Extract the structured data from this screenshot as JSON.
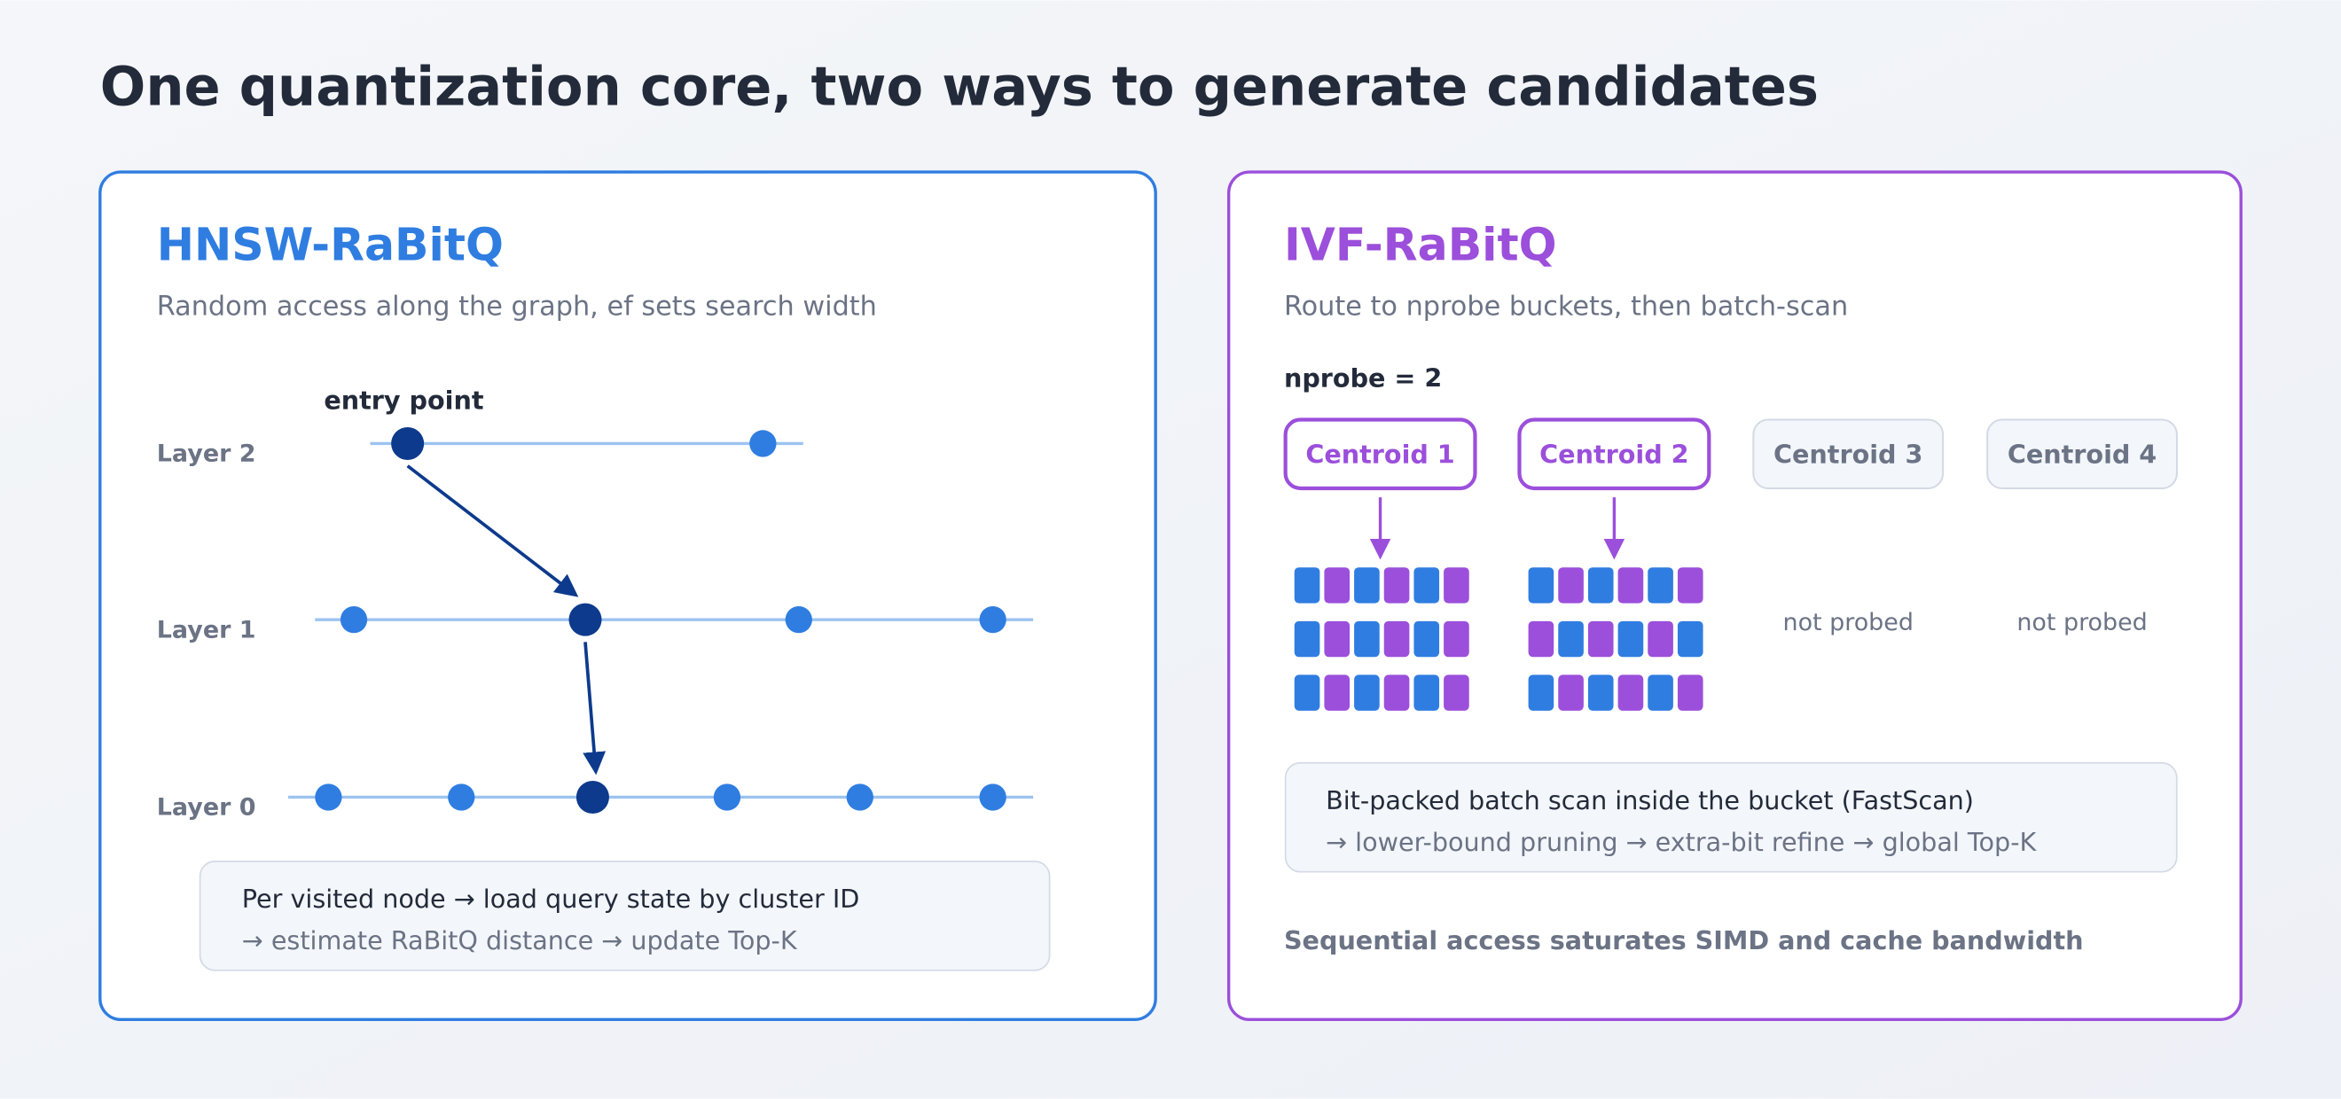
{
  "title": "One quantization core, two ways to generate candidates",
  "panels": [
    {
      "title": "HNSW-RaBitQ",
      "subtitle": "Random access along the graph, ef sets search width",
      "entry_label": "entry point",
      "layers": [
        "Layer 2",
        "Layer 1",
        "Layer 0"
      ],
      "note": [
        "Per visited node → load query state by cluster ID",
        "→ estimate RaBitQ distance → update Top-K"
      ]
    },
    {
      "title": "IVF-RaBitQ",
      "subtitle": "Route to nprobe buckets, then batch-scan",
      "nprobe_label": "nprobe = 2",
      "centroids": [
        {
          "label": "Centroid 1"
        },
        {
          "label": "Centroid 2"
        },
        {
          "label": "Centroid 3",
          "status": "not probed"
        },
        {
          "label": "Centroid 4",
          "status": "not probed"
        }
      ],
      "note": [
        "Bit-packed batch scan inside the bucket (FastScan)",
        "→ lower-bound pruning → extra-bit refine → global Top-K"
      ],
      "footer": "Sequential access saturates SIMD and cache bandwidth"
    }
  ]
}
